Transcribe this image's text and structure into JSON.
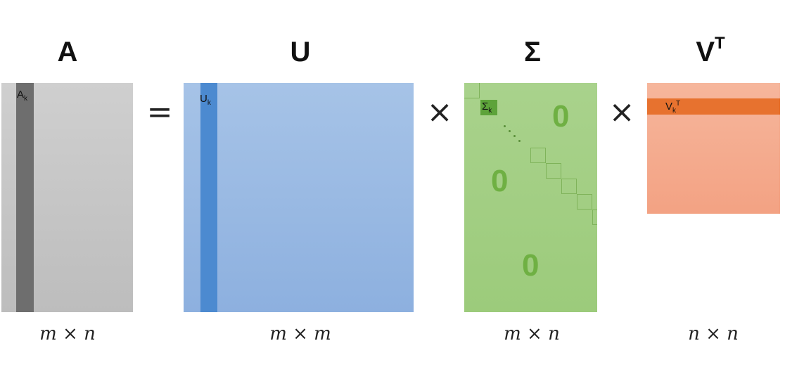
{
  "titles": {
    "a": "A",
    "u": "U",
    "sigma": "Σ",
    "v": "V",
    "v_sup": "T"
  },
  "operators": {
    "equals": "=",
    "times_1": "×",
    "times_2": "×"
  },
  "labels": {
    "a_col": "A",
    "a_col_sub": "k",
    "u_col": "U",
    "u_col_sub": "k",
    "sigma_k": "Σ",
    "sigma_k_sub": "k",
    "v_row": "V",
    "v_row_sub": "k",
    "v_row_sup": "T"
  },
  "zeros": [
    "0",
    "0",
    "0"
  ],
  "dimensions": {
    "a": "m × n",
    "u": "m × m",
    "sigma": "m × n",
    "v": "n × n"
  },
  "colors": {
    "matrix_a": "#c6c6c6",
    "matrix_a_column": "#6e6e6e",
    "matrix_u": "#9bbae3",
    "matrix_u_column": "#4c8ad0",
    "matrix_sigma": "#a2ce83",
    "sigma_k_block": "#5da33a",
    "matrix_v": "#f4ac8f",
    "matrix_v_row": "#e7722f"
  }
}
